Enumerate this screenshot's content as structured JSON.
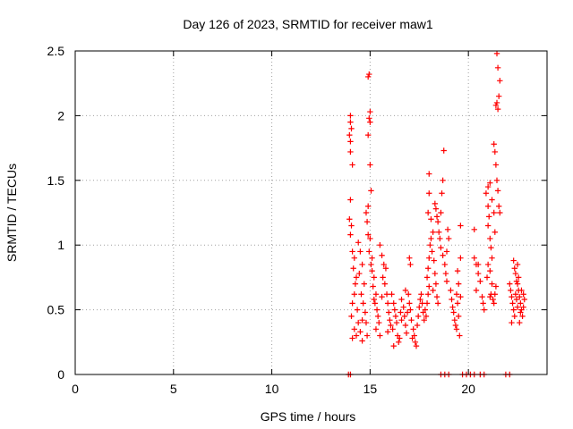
{
  "chart_data": {
    "type": "scatter",
    "title": "Day 126 of 2023, SRMTID for receiver maw1",
    "xlabel": "GPS time / hours",
    "ylabel": "SRMTID / TECUs",
    "xlim": [
      0,
      24
    ],
    "ylim": [
      0,
      2.5
    ],
    "xticks": [
      0,
      5,
      10,
      15,
      20
    ],
    "yticks": [
      0,
      0.5,
      1,
      1.5,
      2,
      2.5
    ],
    "xtick_labels": [
      "0",
      "5",
      "10",
      "15",
      "20"
    ],
    "ytick_labels": [
      "0",
      "0.5",
      "1",
      "1.5",
      "2",
      "2.5"
    ],
    "grid": true,
    "marker": "+",
    "color": "#ff0000",
    "series": [
      {
        "name": "SRMTID",
        "points": [
          [
            13.9,
            0
          ],
          [
            14.0,
            0
          ],
          [
            18.6,
            0
          ],
          [
            18.8,
            0
          ],
          [
            19.0,
            0
          ],
          [
            19.7,
            0
          ],
          [
            19.9,
            0
          ],
          [
            20.1,
            0
          ],
          [
            20.3,
            0
          ],
          [
            20.6,
            0
          ],
          [
            20.8,
            0
          ],
          [
            21.9,
            0
          ],
          [
            22.1,
            0
          ],
          [
            14.0,
            2.0
          ],
          [
            14.0,
            1.95
          ],
          [
            14.05,
            1.9
          ],
          [
            13.95,
            1.85
          ],
          [
            14.0,
            1.8
          ],
          [
            14.0,
            1.72
          ],
          [
            14.1,
            1.62
          ],
          [
            14.0,
            1.35
          ],
          [
            13.95,
            1.2
          ],
          [
            14.05,
            1.15
          ],
          [
            14.0,
            1.08
          ],
          [
            14.1,
            0.95
          ],
          [
            14.2,
            0.9
          ],
          [
            14.15,
            0.82
          ],
          [
            14.3,
            0.75
          ],
          [
            14.25,
            0.7
          ],
          [
            14.2,
            0.62
          ],
          [
            14.1,
            0.55
          ],
          [
            14.35,
            0.5
          ],
          [
            14.05,
            0.45
          ],
          [
            14.4,
            0.4
          ],
          [
            14.2,
            0.35
          ],
          [
            14.3,
            0.3
          ],
          [
            14.1,
            0.28
          ],
          [
            14.5,
            0.33
          ],
          [
            14.6,
            0.42
          ],
          [
            14.4,
            1.02
          ],
          [
            14.5,
            0.95
          ],
          [
            14.6,
            0.85
          ],
          [
            14.45,
            0.78
          ],
          [
            14.7,
            0.7
          ],
          [
            14.55,
            0.62
          ],
          [
            14.65,
            0.55
          ],
          [
            14.75,
            0.48
          ],
          [
            14.8,
            0.4
          ],
          [
            14.85,
            0.3
          ],
          [
            14.6,
            0.26
          ],
          [
            14.9,
            2.3
          ],
          [
            14.95,
            2.32
          ],
          [
            15.0,
            2.03
          ],
          [
            14.95,
            1.98
          ],
          [
            15.0,
            1.95
          ],
          [
            14.9,
            1.85
          ],
          [
            15.0,
            1.62
          ],
          [
            15.05,
            1.42
          ],
          [
            14.9,
            1.3
          ],
          [
            14.8,
            1.25
          ],
          [
            14.85,
            1.18
          ],
          [
            14.9,
            1.08
          ],
          [
            15.0,
            1.05
          ],
          [
            14.95,
            0.95
          ],
          [
            15.1,
            0.9
          ],
          [
            15.05,
            0.85
          ],
          [
            15.1,
            0.8
          ],
          [
            15.2,
            0.75
          ],
          [
            15.15,
            0.68
          ],
          [
            15.3,
            0.62
          ],
          [
            15.25,
            0.55
          ],
          [
            15.35,
            0.5
          ],
          [
            15.4,
            0.45
          ],
          [
            15.45,
            0.4
          ],
          [
            15.3,
            0.35
          ],
          [
            15.5,
            0.3
          ],
          [
            15.2,
            0.58
          ],
          [
            15.6,
            0.6
          ],
          [
            15.5,
            1.0
          ],
          [
            15.6,
            0.92
          ],
          [
            15.7,
            0.85
          ],
          [
            15.8,
            0.82
          ],
          [
            15.65,
            0.75
          ],
          [
            15.75,
            0.7
          ],
          [
            15.85,
            0.62
          ],
          [
            15.9,
            0.55
          ],
          [
            15.95,
            0.48
          ],
          [
            16.0,
            0.42
          ],
          [
            16.05,
            0.38
          ],
          [
            15.9,
            0.33
          ],
          [
            16.1,
            0.62
          ],
          [
            16.2,
            0.55
          ],
          [
            16.25,
            0.5
          ],
          [
            16.3,
            0.45
          ],
          [
            16.35,
            0.4
          ],
          [
            16.15,
            0.35
          ],
          [
            16.4,
            0.3
          ],
          [
            16.45,
            0.25
          ],
          [
            16.2,
            0.22
          ],
          [
            16.5,
            0.28
          ],
          [
            16.55,
            0.48
          ],
          [
            16.6,
            0.42
          ],
          [
            16.6,
            0.58
          ],
          [
            16.7,
            0.52
          ],
          [
            16.75,
            0.45
          ],
          [
            16.8,
            0.38
          ],
          [
            16.85,
            0.32
          ],
          [
            16.9,
            0.48
          ],
          [
            16.95,
            0.62
          ],
          [
            17.0,
            0.55
          ],
          [
            17.05,
            0.5
          ],
          [
            16.8,
            0.65
          ],
          [
            17.0,
            0.9
          ],
          [
            17.05,
            0.85
          ],
          [
            17.1,
            0.42
          ],
          [
            17.2,
            0.35
          ],
          [
            17.25,
            0.3
          ],
          [
            17.3,
            0.25
          ],
          [
            17.35,
            0.22
          ],
          [
            17.15,
            0.28
          ],
          [
            17.4,
            0.38
          ],
          [
            17.45,
            0.45
          ],
          [
            17.5,
            0.52
          ],
          [
            17.55,
            0.58
          ],
          [
            17.6,
            0.62
          ],
          [
            17.65,
            0.55
          ],
          [
            17.7,
            0.48
          ],
          [
            17.75,
            0.42
          ],
          [
            17.8,
            0.5
          ],
          [
            17.85,
            0.45
          ],
          [
            17.9,
            0.55
          ],
          [
            17.95,
            0.62
          ],
          [
            18.0,
            0.68
          ],
          [
            17.9,
            0.75
          ],
          [
            17.95,
            0.82
          ],
          [
            18.0,
            0.9
          ],
          [
            18.05,
            1.0
          ],
          [
            18.1,
            1.05
          ],
          [
            17.95,
            1.25
          ],
          [
            18.0,
            1.4
          ],
          [
            18.0,
            1.55
          ],
          [
            18.1,
            1.2
          ],
          [
            18.2,
            1.1
          ],
          [
            18.15,
            0.95
          ],
          [
            18.25,
            0.88
          ],
          [
            18.3,
            0.78
          ],
          [
            18.35,
            0.7
          ],
          [
            18.2,
            0.65
          ],
          [
            18.4,
            0.6
          ],
          [
            18.45,
            0.55
          ],
          [
            18.3,
            1.32
          ],
          [
            18.35,
            1.28
          ],
          [
            18.4,
            1.22
          ],
          [
            18.45,
            1.18
          ],
          [
            18.5,
            1.1
          ],
          [
            18.55,
            1.05
          ],
          [
            18.6,
            0.98
          ],
          [
            18.7,
            1.5
          ],
          [
            18.75,
            1.73
          ],
          [
            18.6,
            1.25
          ],
          [
            18.65,
            1.4
          ],
          [
            18.7,
            0.92
          ],
          [
            18.8,
            0.85
          ],
          [
            18.85,
            0.78
          ],
          [
            18.9,
            0.72
          ],
          [
            18.95,
            1.12
          ],
          [
            19.0,
            1.05
          ],
          [
            18.9,
            0.95
          ],
          [
            19.1,
            0.65
          ],
          [
            19.15,
            0.58
          ],
          [
            19.2,
            0.52
          ],
          [
            19.25,
            0.48
          ],
          [
            19.3,
            0.42
          ],
          [
            19.35,
            0.38
          ],
          [
            19.4,
            0.62
          ],
          [
            19.45,
            0.55
          ],
          [
            19.5,
            0.45
          ],
          [
            19.4,
            0.35
          ],
          [
            19.55,
            0.3
          ],
          [
            19.6,
            1.15
          ],
          [
            19.6,
            0.9
          ],
          [
            19.5,
            0.7
          ],
          [
            19.6,
            0.6
          ],
          [
            19.45,
            0.8
          ],
          [
            20.3,
            1.12
          ],
          [
            20.3,
            0.9
          ],
          [
            20.4,
            0.85
          ],
          [
            20.5,
            0.78
          ],
          [
            20.6,
            0.72
          ],
          [
            20.4,
            0.65
          ],
          [
            20.7,
            0.6
          ],
          [
            20.75,
            0.55
          ],
          [
            20.8,
            0.5
          ],
          [
            20.5,
            0.85
          ],
          [
            20.9,
            1.4
          ],
          [
            21.0,
            1.3
          ],
          [
            21.05,
            1.22
          ],
          [
            21.0,
            1.15
          ],
          [
            21.1,
            1.05
          ],
          [
            21.15,
            0.98
          ],
          [
            21.2,
            0.9
          ],
          [
            21.0,
            0.85
          ],
          [
            21.1,
            0.8
          ],
          [
            20.95,
            0.75
          ],
          [
            21.2,
            0.7
          ],
          [
            21.15,
            0.62
          ],
          [
            21.1,
            1.48
          ],
          [
            21.0,
            1.45
          ],
          [
            21.2,
            1.35
          ],
          [
            21.3,
            1.25
          ],
          [
            21.35,
            1.1
          ],
          [
            21.25,
            0.58
          ],
          [
            21.3,
            0.55
          ],
          [
            21.35,
            0.62
          ],
          [
            21.4,
            0.68
          ],
          [
            21.1,
            0.6
          ],
          [
            21.3,
            1.78
          ],
          [
            21.35,
            1.72
          ],
          [
            21.4,
            1.62
          ],
          [
            21.45,
            1.5
          ],
          [
            21.5,
            1.42
          ],
          [
            21.55,
            1.3
          ],
          [
            21.6,
            1.25
          ],
          [
            21.4,
            2.08
          ],
          [
            21.45,
            2.1
          ],
          [
            21.5,
            2.05
          ],
          [
            21.55,
            2.15
          ],
          [
            21.6,
            2.27
          ],
          [
            21.5,
            2.37
          ],
          [
            21.45,
            2.48
          ],
          [
            22.1,
            0.7
          ],
          [
            22.15,
            0.65
          ],
          [
            22.2,
            0.6
          ],
          [
            22.25,
            0.55
          ],
          [
            22.3,
            0.5
          ],
          [
            22.35,
            0.45
          ],
          [
            22.2,
            0.4
          ],
          [
            22.4,
            0.62
          ],
          [
            22.45,
            0.58
          ],
          [
            22.5,
            0.52
          ],
          [
            22.3,
            0.88
          ],
          [
            22.35,
            0.82
          ],
          [
            22.4,
            0.78
          ],
          [
            22.45,
            0.72
          ],
          [
            22.5,
            0.7
          ],
          [
            22.55,
            0.65
          ],
          [
            22.6,
            0.6
          ],
          [
            22.65,
            0.55
          ],
          [
            22.7,
            0.5
          ],
          [
            22.75,
            0.45
          ],
          [
            22.6,
            0.4
          ],
          [
            22.8,
            0.62
          ],
          [
            22.85,
            0.58
          ],
          [
            22.7,
            0.65
          ],
          [
            22.55,
            0.75
          ],
          [
            22.5,
            0.85
          ],
          [
            22.8,
            0.52
          ],
          [
            22.65,
            0.48
          ]
        ]
      }
    ]
  }
}
